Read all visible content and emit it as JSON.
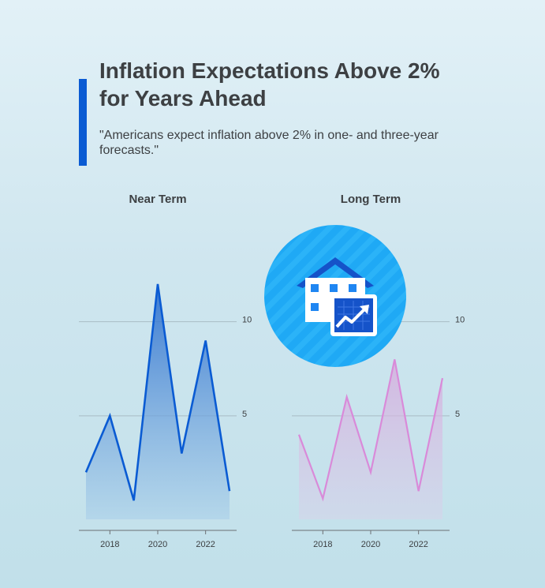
{
  "header": {
    "title": "Inflation Expectations Above 2% for Years Ahead",
    "subtitle": "\"Americans expect inflation above 2% in one- and three-year forecasts.\""
  },
  "badge": {
    "icon": "house-with-rising-chart-icon",
    "background": "#1fa9f5"
  },
  "chart_data": [
    {
      "type": "area",
      "title": "Near Term",
      "x": [
        2017,
        2018,
        2019,
        2020,
        2021,
        2022,
        2023
      ],
      "values": [
        2.0,
        5.0,
        0.5,
        12.0,
        3.0,
        9.0,
        1.0
      ],
      "ylim": [
        -0.5,
        12.5
      ],
      "y_ticks": [
        5,
        10
      ],
      "x_ticks": [
        2018,
        2020,
        2022
      ],
      "grid": true,
      "color": "#0a5bd3"
    },
    {
      "type": "area",
      "title": "Long Term",
      "x": [
        2017,
        2018,
        2019,
        2020,
        2021,
        2022,
        2023
      ],
      "values": [
        4.0,
        0.6,
        6.0,
        2.0,
        8.0,
        1.0,
        7.0
      ],
      "ylim": [
        -0.5,
        12.5
      ],
      "y_ticks": [
        5,
        10
      ],
      "x_ticks": [
        2018,
        2020,
        2022
      ],
      "grid": true,
      "color": "#d98ad9"
    }
  ]
}
